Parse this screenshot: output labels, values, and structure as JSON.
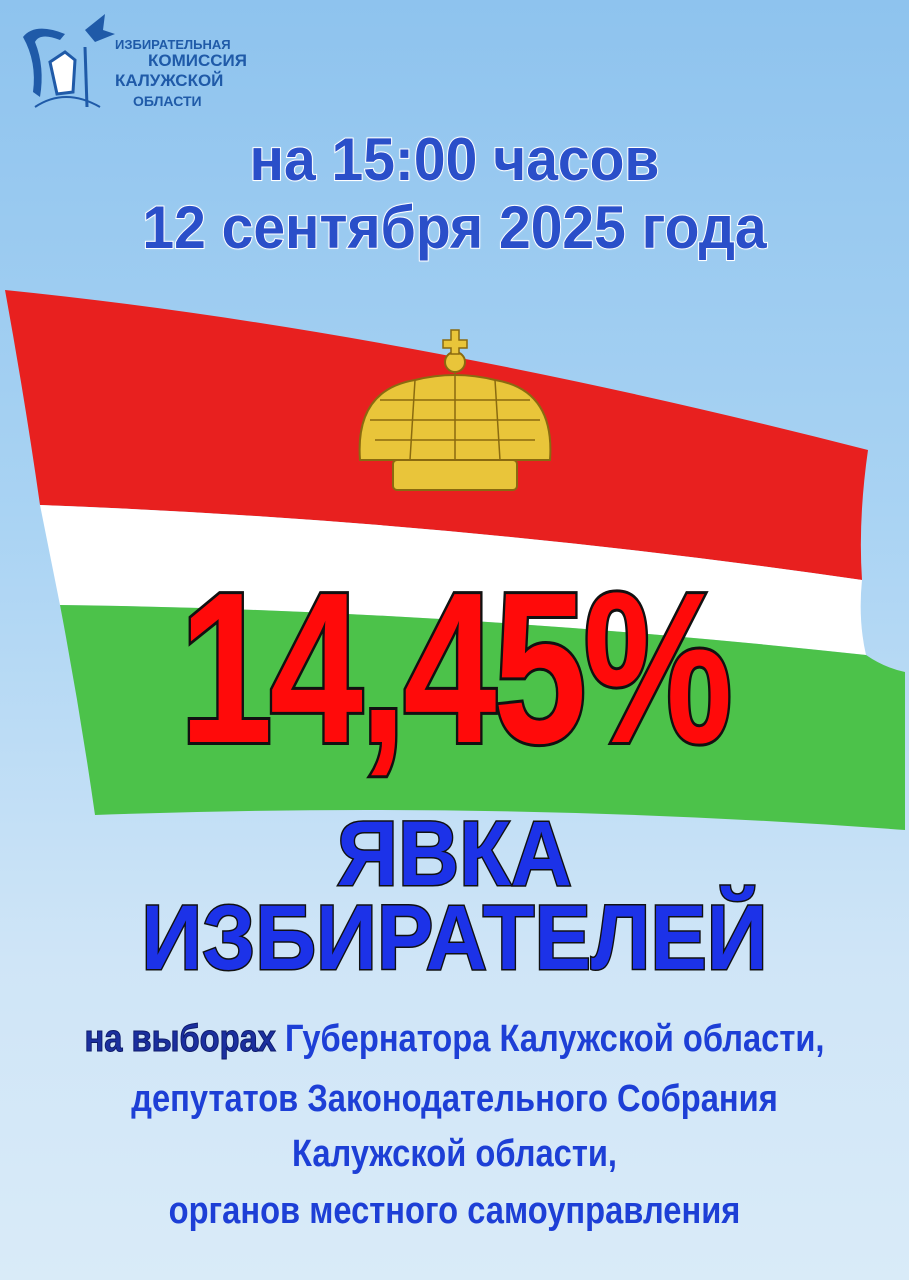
{
  "logo": {
    "lines": [
      "ИЗБИРАТЕЛЬНАЯ",
      "КОМИССИЯ",
      "КАЛУЖСКОЙ",
      "ОБЛАСТИ"
    ],
    "color": "#1f5aa8"
  },
  "header": {
    "time_line": "на 15:00 часов",
    "date_line": "12 сентября 2025 года"
  },
  "turnout": {
    "value": "14,45%",
    "percent": 14.45,
    "color": "#ff0a0a"
  },
  "title": {
    "line1": "ЯВКА",
    "line2": "ИЗБИРАТЕЛЕЙ"
  },
  "description": {
    "prefix": "на выборах",
    "line1": "Губернатора Калужской области,",
    "line2": "депутатов Законодательного Собрания",
    "line3": "Калужской области,",
    "line4": "органов местного самоуправления"
  },
  "flag": {
    "colors": [
      "#e8201f",
      "#ffffff",
      "#4cc24a"
    ],
    "emblem": "crown-icon",
    "crown_color": "#e9c53a"
  }
}
